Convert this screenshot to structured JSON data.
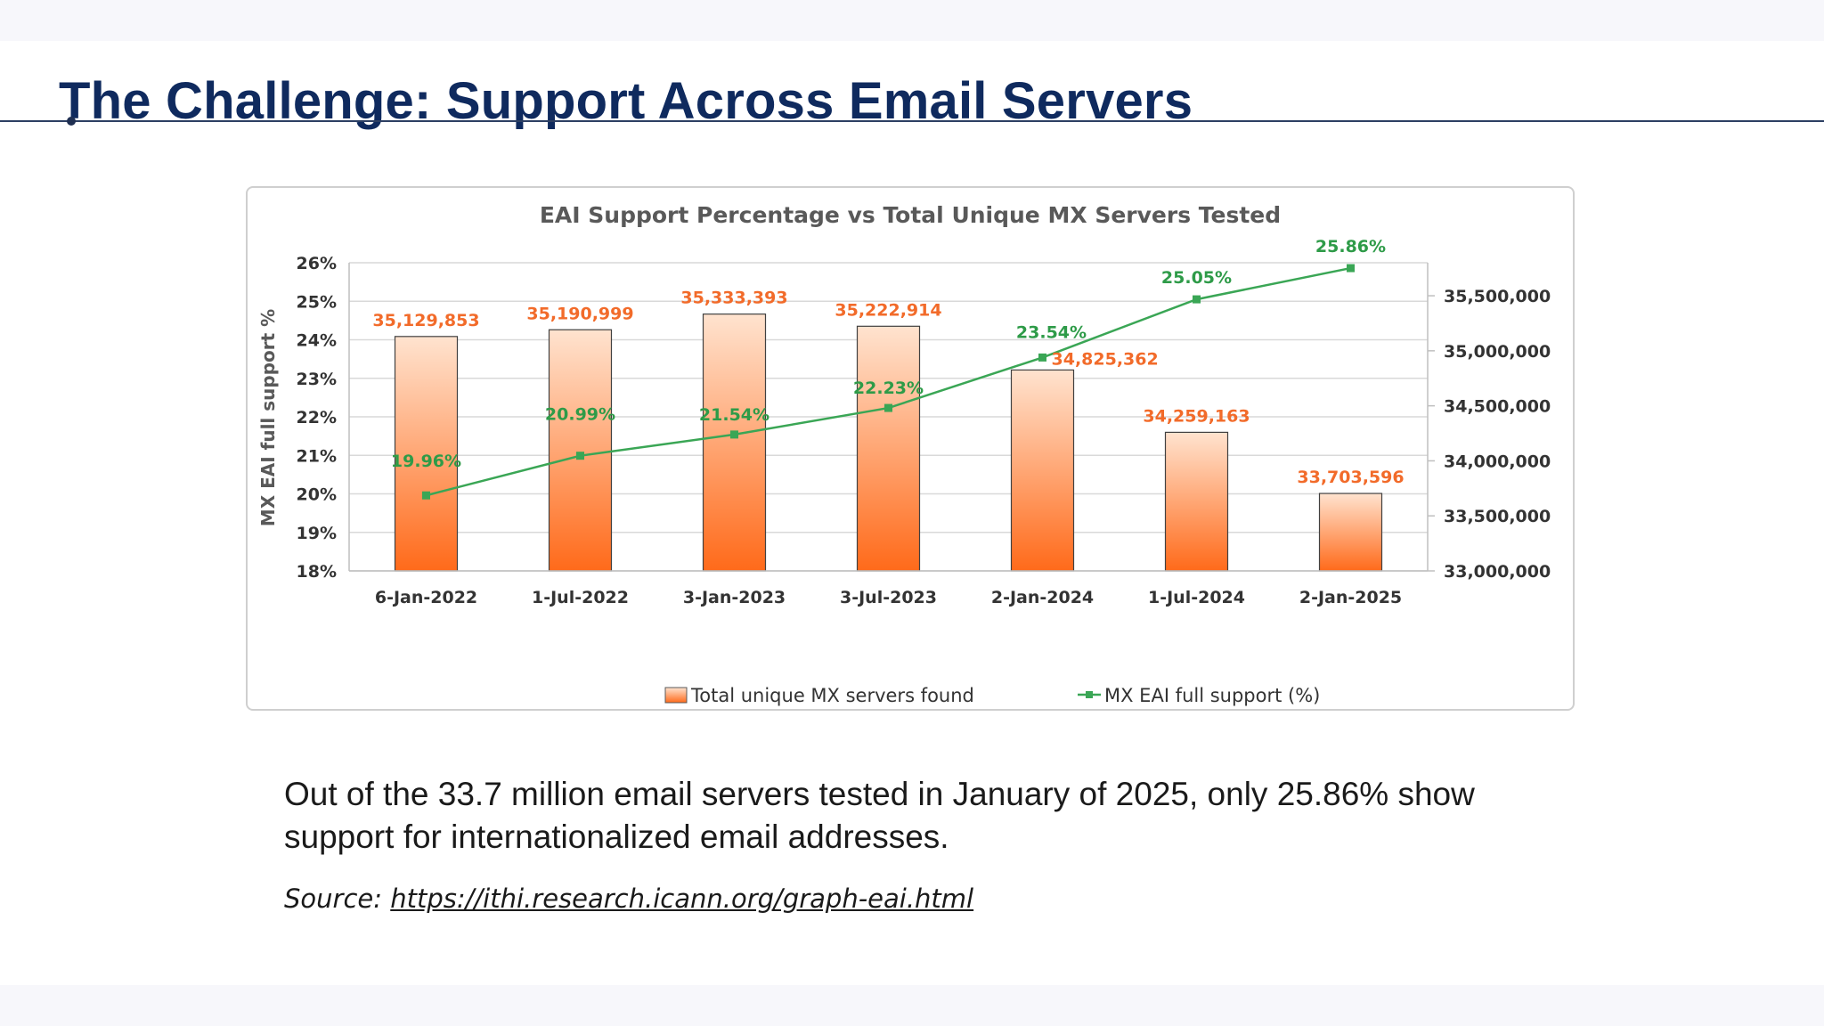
{
  "slide": {
    "title": "The Challenge: Support Across Email Servers",
    "summary": "Out of the 33.7 million email servers tested in January of 2025, only 25.86% show support for internationalized email addresses.",
    "source_label": "Source:",
    "source_link": "https://ithi.research.icann.org/graph-eai.html"
  },
  "colors": {
    "title": "#0f2a5e",
    "bar_top": "#ffe3cf",
    "bar_bottom": "#ff6a1a",
    "bar_label": "#f26b2a",
    "line": "#3aa655",
    "line_label": "#2e9b48"
  },
  "chart_data": {
    "type": "bar",
    "title": "EAI Support Percentage vs Total Unique MX Servers Tested",
    "categories": [
      "6-Jan-2022",
      "1-Jul-2022",
      "3-Jan-2023",
      "3-Jul-2023",
      "2-Jan-2024",
      "1-Jul-2024",
      "2-Jan-2025"
    ],
    "series": [
      {
        "name": "Total unique MX servers found",
        "type": "bar",
        "axis": "right",
        "values": [
          35129853,
          35190999,
          35333393,
          35222914,
          34825362,
          34259163,
          33703596
        ],
        "labels": [
          "35,129,853",
          "35,190,999",
          "35,333,393",
          "35,222,914",
          "34,825,362",
          "34,259,163",
          "33,703,596"
        ]
      },
      {
        "name": "MX EAI full support (%)",
        "type": "line",
        "axis": "left",
        "values": [
          19.96,
          20.99,
          21.54,
          22.23,
          23.54,
          25.05,
          25.86
        ],
        "labels": [
          "19.96%",
          "20.99%",
          "21.54%",
          "22.23%",
          "23.54%",
          "25.05%",
          "25.86%"
        ]
      }
    ],
    "ylabel": "MX EAI full support %",
    "ylim": [
      18,
      26
    ],
    "yticks": [
      "18%",
      "19%",
      "20%",
      "21%",
      "22%",
      "23%",
      "24%",
      "25%",
      "26%"
    ],
    "y2lim": [
      33000000,
      35800000
    ],
    "y2ticks": [
      {
        "value": 33000000,
        "label": "33,000,000"
      },
      {
        "value": 33500000,
        "label": "33,500,000"
      },
      {
        "value": 34000000,
        "label": "34,000,000"
      },
      {
        "value": 34500000,
        "label": "34,500,000"
      },
      {
        "value": 35000000,
        "label": "35,000,000"
      },
      {
        "value": 35500000,
        "label": "35,500,000"
      }
    ],
    "grid": true,
    "legend": "bottom-center"
  }
}
